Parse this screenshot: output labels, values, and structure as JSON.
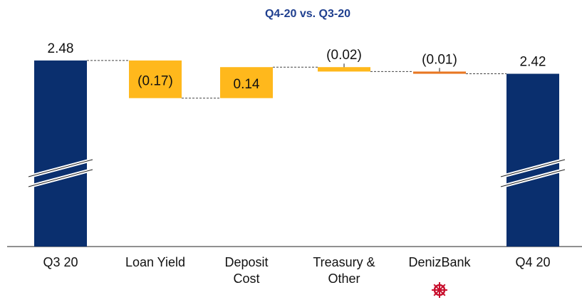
{
  "chart_data": {
    "type": "waterfall",
    "title": "Q4-20 vs. Q3-20",
    "categories": [
      "Q3 20",
      "Loan Yield",
      "Deposit Cost",
      "Treasury & Other",
      "DenizBank",
      "Q4 20"
    ],
    "values": [
      2.48,
      -0.17,
      0.14,
      -0.02,
      -0.01,
      2.42
    ],
    "value_labels": [
      "2.48",
      "(0.17)",
      "0.14",
      "(0.02)",
      "(0.01)",
      "2.42"
    ],
    "colors": [
      "#0a2f6e",
      "#ffb81c",
      "#ffb81c",
      "#ffb81c",
      "#e87722",
      "#0a2f6e"
    ],
    "totals": [
      true,
      false,
      false,
      false,
      false,
      true
    ],
    "ylim": [
      1.64,
      2.56
    ],
    "broken_axis": true
  }
}
